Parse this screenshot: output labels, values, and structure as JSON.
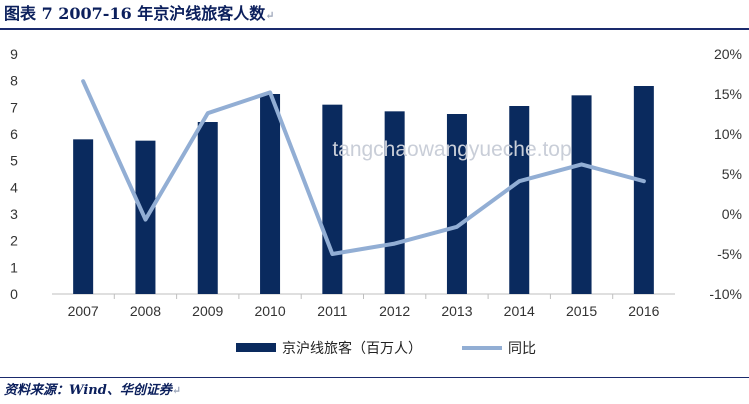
{
  "header": {
    "title": "图表 7 2007-16 年京沪线旅客人数",
    "return_mark": "↵"
  },
  "footer": {
    "source": "资料来源：Wind、华创证券",
    "return_mark": "↵"
  },
  "watermark": "tangchaowangyueche.top",
  "colors": {
    "bar": "#0a2a5e",
    "line": "#92aed4",
    "rule": "#1a2a6c",
    "grid": "#d9d9d9"
  },
  "chart_data": {
    "type": "bar",
    "categories": [
      "2007",
      "2008",
      "2009",
      "2010",
      "2011",
      "2012",
      "2013",
      "2014",
      "2015",
      "2016"
    ],
    "series": [
      {
        "name": "京沪线旅客（百万人）",
        "type": "bar",
        "axis": "left",
        "values": [
          5.8,
          5.75,
          6.45,
          7.5,
          7.1,
          6.85,
          6.75,
          7.05,
          7.45,
          7.8
        ]
      },
      {
        "name": "同比",
        "type": "line",
        "axis": "right",
        "values": [
          16.6,
          -0.7,
          12.6,
          15.2,
          -5.0,
          -3.7,
          -1.6,
          4.1,
          6.2,
          4.1
        ]
      }
    ],
    "y_left": {
      "min": 0,
      "max": 9,
      "step": 1,
      "tick_labels": [
        "0",
        "1",
        "2",
        "3",
        "4",
        "5",
        "6",
        "7",
        "8",
        "9"
      ]
    },
    "y_right": {
      "min": -10,
      "max": 20,
      "step": 5,
      "tick_labels": [
        "-10%",
        "-5%",
        "0%",
        "5%",
        "10%",
        "15%",
        "20%"
      ]
    },
    "legend_position": "bottom",
    "grid": false
  }
}
